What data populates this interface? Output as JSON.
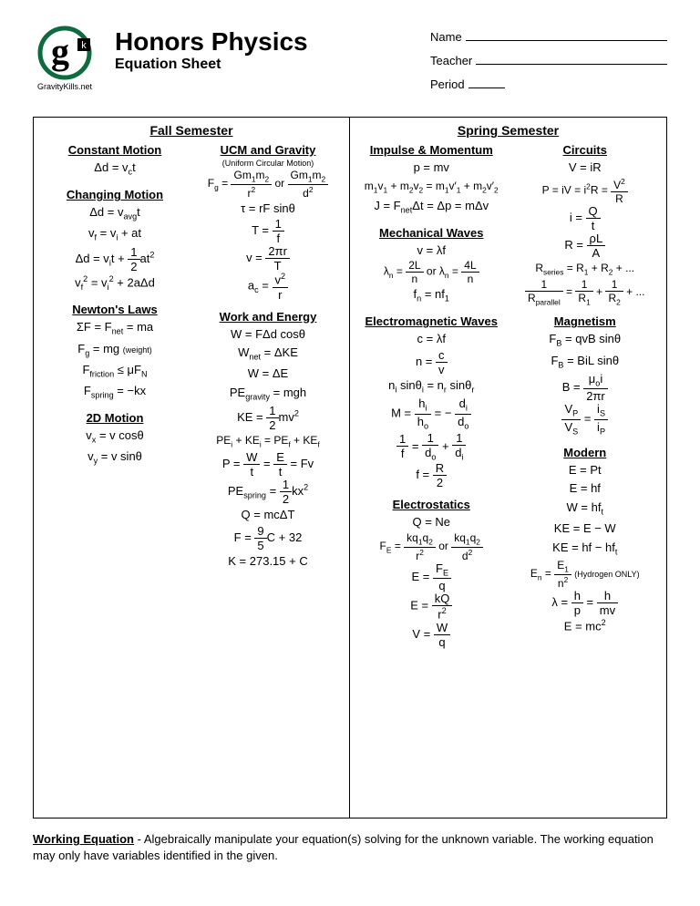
{
  "header": {
    "logo_letter": "g",
    "logo_sub": "k",
    "logo_caption": "GravityKills.net",
    "title": "Honors Physics",
    "subtitle": "Equation Sheet",
    "name_label": "Name",
    "teacher_label": "Teacher",
    "period_label": "Period",
    "logo_ring_color": "#0d6b3f",
    "logo_text_color": "#000000"
  },
  "layout": {
    "page_bg": "#ffffff",
    "border_color": "#000000",
    "font_family": "Arial",
    "title_fontsize_pt": 21,
    "body_fontsize_pt": 10
  },
  "fall": {
    "title": "Fall Semester",
    "constant_motion": {
      "title": "Constant Motion",
      "eq1": "Δd = v<sub>c</sub>t"
    },
    "changing_motion": {
      "title": "Changing Motion",
      "eq1": "Δd = v<sub>avg</sub>t",
      "eq2": "v<sub>f</sub> = v<sub>i</sub> + at",
      "eq3": "Δd = v<sub>i</sub>t + <span class=\"frac\"><span class=\"num\">1</span><span class=\"den\">2</span></span>at<sup>2</sup>",
      "eq4": "v<sub>f</sub><sup>2</sup> = v<sub>i</sub><sup>2</sup> + 2aΔd"
    },
    "newtons_laws": {
      "title": "Newton's Laws",
      "eq1": "ΣF = F<sub>net</sub> = ma",
      "eq2": "F<sub>g</sub> = mg <span class=\"annot\">(weight)</span>",
      "eq3": "F<sub>friction</sub> ≤ μF<sub>N</sub>",
      "eq4": "F<sub>spring</sub> = −kx"
    },
    "two_d": {
      "title": "2D Motion",
      "eq1": "v<sub>x</sub> = v cosθ",
      "eq2": "v<sub>y</sub> = v sinθ"
    },
    "ucm": {
      "title": "UCM and Gravity",
      "subtitle": "(Uniform Circular Motion)",
      "eq1": "F<sub>g</sub> = <span class=\"frac\"><span class=\"num\">Gm<sub>1</sub>m<sub>2</sub></span><span class=\"den\">r<sup>2</sup></span></span> or <span class=\"frac\"><span class=\"num\">Gm<sub>1</sub>m<sub>2</sub></span><span class=\"den\">d<sup>2</sup></span></span>",
      "eq2": "τ = rF sinθ",
      "eq3": "T = <span class=\"frac\"><span class=\"num\">1</span><span class=\"den\">f</span></span>",
      "eq4": "v = <span class=\"frac\"><span class=\"num\">2πr</span><span class=\"den\">T</span></span>",
      "eq5": "a<sub>c</sub> = <span class=\"frac\"><span class=\"num\">v<sup>2</sup></span><span class=\"den\">r</span></span>"
    },
    "work_energy": {
      "title": "Work and Energy",
      "eq1": "W = FΔd cosθ",
      "eq2": "W<sub>net</sub> = ΔKE",
      "eq3": "W = ΔE",
      "eq4": "PE<sub>gravity</sub> = mgh",
      "eq5": "KE = <span class=\"frac\"><span class=\"num\">1</span><span class=\"den\">2</span></span>mv<sup>2</sup>",
      "eq6": "PE<sub>i</sub> + KE<sub>i</sub> = PE<sub>f</sub> + KE<sub>f</sub>",
      "eq7": "P = <span class=\"frac\"><span class=\"num\">W</span><span class=\"den\">t</span></span> = <span class=\"frac\"><span class=\"num\">E</span><span class=\"den\">t</span></span> = Fv",
      "eq8": "PE<sub>spring</sub> = <span class=\"frac\"><span class=\"num\">1</span><span class=\"den\">2</span></span>kx<sup>2</sup>",
      "eq9": "Q = mcΔT",
      "eq10": "F = <span class=\"frac\"><span class=\"num\">9</span><span class=\"den\">5</span></span>C + 32",
      "eq11": "K = 273.15 + C"
    }
  },
  "spring": {
    "title": "Spring Semester",
    "impulse": {
      "title": "Impulse & Momentum",
      "eq1": "p = mv",
      "eq2": "m<sub>1</sub>v<sub>1</sub> + m<sub>2</sub>v<sub>2</sub> = m<sub>1</sub>v′<sub>1</sub> + m<sub>2</sub>v′<sub>2</sub>",
      "eq3": "J = F<sub>net</sub>Δt = Δp = mΔv"
    },
    "mech_waves": {
      "title": "Mechanical Waves",
      "eq1": "v = λf",
      "eq2": "λ<sub>n</sub> = <span class=\"frac\"><span class=\"num\">2L</span><span class=\"den\">n</span></span> or λ<sub>n</sub> = <span class=\"frac\"><span class=\"num\">4L</span><span class=\"den\">n</span></span>",
      "eq3": "f<sub>n</sub> = nf<sub>1</sub>"
    },
    "em_waves": {
      "title": "Electromagnetic Waves",
      "eq1": "c = λf",
      "eq2": "n = <span class=\"frac\"><span class=\"num\">c</span><span class=\"den\">v</span></span>",
      "eq3": "n<sub>i</sub> sinθ<sub>i</sub> = n<sub>r</sub> sinθ<sub>r</sub>",
      "eq4": "M = <span class=\"frac\"><span class=\"num\">h<sub>i</sub></span><span class=\"den\">h<sub>o</sub></span></span> = − <span class=\"frac\"><span class=\"num\">d<sub>i</sub></span><span class=\"den\">d<sub>o</sub></span></span>",
      "eq5": "<span class=\"frac\"><span class=\"num\">1</span><span class=\"den\">f</span></span> = <span class=\"frac\"><span class=\"num\">1</span><span class=\"den\">d<sub>o</sub></span></span> + <span class=\"frac\"><span class=\"num\">1</span><span class=\"den\">d<sub>i</sub></span></span>",
      "eq6": "f = <span class=\"frac\"><span class=\"num\">R</span><span class=\"den\">2</span></span>"
    },
    "electro": {
      "title": "Electrostatics",
      "eq1": "Q = Ne",
      "eq2": "F<sub>E</sub> = <span class=\"frac\"><span class=\"num\">kq<sub>1</sub>q<sub>2</sub></span><span class=\"den\">r<sup>2</sup></span></span> or <span class=\"frac\"><span class=\"num\">kq<sub>1</sub>q<sub>2</sub></span><span class=\"den\">d<sup>2</sup></span></span>",
      "eq3": "E = <span class=\"frac\"><span class=\"num\">F<sub>E</sub></span><span class=\"den\">q</span></span>",
      "eq4": "E = <span class=\"frac\"><span class=\"num\">kQ</span><span class=\"den\">r<sup>2</sup></span></span>",
      "eq5": "V = <span class=\"frac\"><span class=\"num\">W</span><span class=\"den\">q</span></span>"
    },
    "circuits": {
      "title": "Circuits",
      "eq1": "V = iR",
      "eq2": "P = iV = i<sup>2</sup>R = <span class=\"frac\"><span class=\"num\">V<sup>2</sup></span><span class=\"den\">R</span></span>",
      "eq3": "i = <span class=\"frac\"><span class=\"num\">Q</span><span class=\"den\">t</span></span>",
      "eq4": "R = <span class=\"frac\"><span class=\"num\">ρL</span><span class=\"den\">A</span></span>",
      "eq5": "R<sub>series</sub> = R<sub>1</sub> + R<sub>2</sub> + ...",
      "eq6": "<span class=\"frac\"><span class=\"num\">1</span><span class=\"den\">R<sub>parallel</sub></span></span> = <span class=\"frac\"><span class=\"num\">1</span><span class=\"den\">R<sub>1</sub></span></span> + <span class=\"frac\"><span class=\"num\">1</span><span class=\"den\">R<sub>2</sub></span></span> + ..."
    },
    "magnetism": {
      "title": "Magnetism",
      "eq1": "F<sub>B</sub> = qvB sinθ",
      "eq2": "F<sub>B</sub> = BiL sinθ",
      "eq3": "B = <span class=\"frac\"><span class=\"num\">μ<sub>o</sub>i</span><span class=\"den\">2πr</span></span>",
      "eq4": "<span class=\"frac\"><span class=\"num\">V<sub>P</sub></span><span class=\"den\">V<sub>S</sub></span></span> = <span class=\"frac\"><span class=\"num\">i<sub>S</sub></span><span class=\"den\">i<sub>P</sub></span></span>"
    },
    "modern": {
      "title": "Modern",
      "eq1": "E = Pt",
      "eq2": "E = hf",
      "eq3": "W = hf<sub>t</sub>",
      "eq4": "KE = E − W",
      "eq5": "KE = hf − hf<sub>t</sub>",
      "eq6": "E<sub>n</sub> = <span class=\"frac\"><span class=\"num\">E<sub>1</sub></span><span class=\"den\">n<sup>2</sup></span></span> <span class=\"annot\">(Hydrogen ONLY)</span>",
      "eq7": "λ = <span class=\"frac\"><span class=\"num\">h</span><span class=\"den\">p</span></span> = <span class=\"frac\"><span class=\"num\">h</span><span class=\"den\">mv</span></span>",
      "eq8": "E = mc<sup>2</sup>"
    }
  },
  "footer": {
    "lead": "Working Equation",
    "text": " - Algebraically manipulate your equation(s) solving for the unknown variable.  The working equation may only have variables identified in the given."
  }
}
